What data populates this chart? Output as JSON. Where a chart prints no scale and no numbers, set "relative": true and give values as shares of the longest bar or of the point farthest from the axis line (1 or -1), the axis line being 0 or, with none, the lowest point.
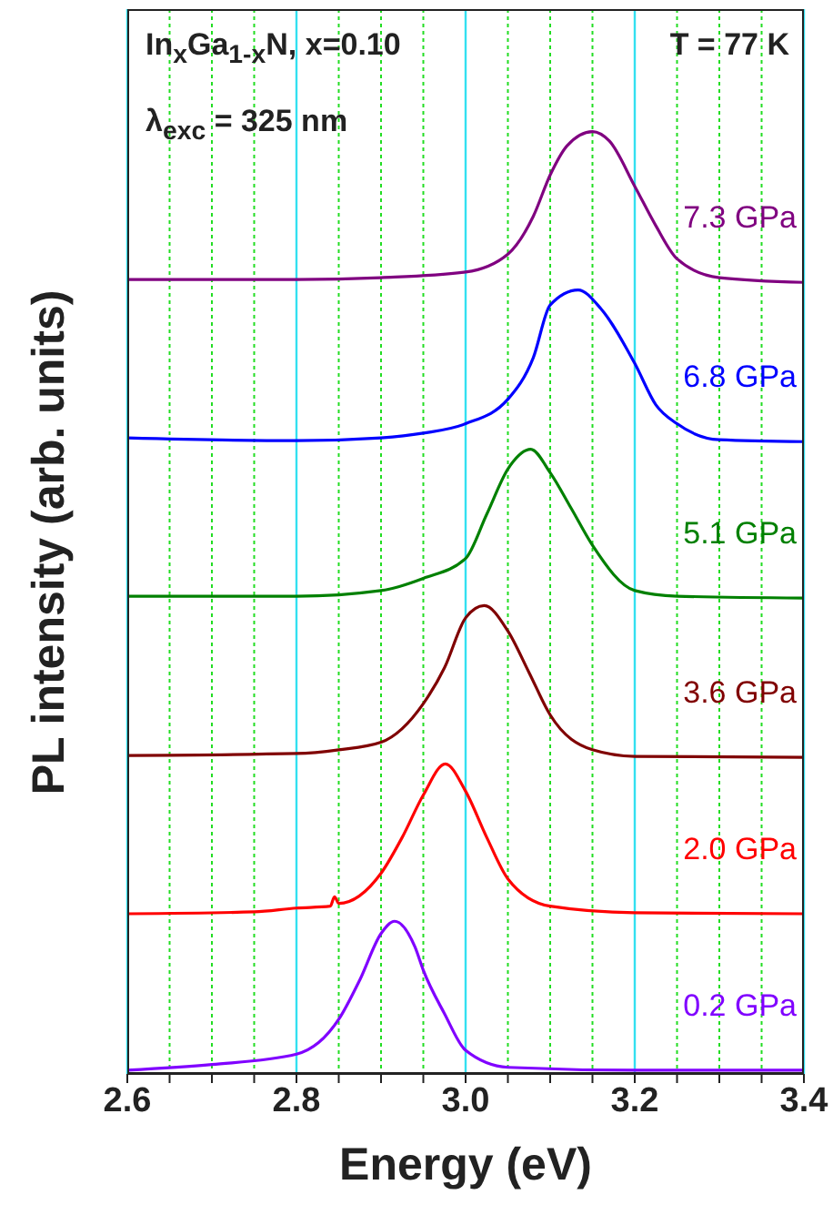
{
  "chart_data": {
    "type": "line",
    "xlabel": "Energy (eV)",
    "ylabel": "PL intensity (arb. units)",
    "relative": true,
    "annotations": [
      "In$_{x}$Ga$_{1-x}$N, x=0.10",
      "λ$_{exc}$ = 325 nm",
      "T = 77 K"
    ],
    "xlim": [
      2.6,
      3.4
    ],
    "xticks": [
      {
        "value": 2.6,
        "label": "2.6"
      },
      {
        "value": 2.65,
        "label": null
      },
      {
        "value": 2.7,
        "label": null
      },
      {
        "value": 2.75,
        "label": null
      },
      {
        "value": 2.8,
        "label": "2.8"
      },
      {
        "value": 2.85,
        "label": null
      },
      {
        "value": 2.9,
        "label": null
      },
      {
        "value": 2.95,
        "label": null
      },
      {
        "value": 3.0,
        "label": "3.0"
      },
      {
        "value": 3.05,
        "label": null
      },
      {
        "value": 3.1,
        "label": null
      },
      {
        "value": 3.15,
        "label": null
      },
      {
        "value": 3.2,
        "label": "3.2"
      },
      {
        "value": 3.25,
        "label": null
      },
      {
        "value": 3.3,
        "label": null
      },
      {
        "value": 3.35,
        "label": null
      },
      {
        "value": 3.4,
        "label": "3.4"
      }
    ],
    "grid": "x",
    "marker": "none",
    "line_style": "solid",
    "series": [
      {
        "name": "0.2 GPa",
        "color": "#8000ff",
        "x": [
          2.6,
          2.7,
          2.8,
          2.85,
          2.875,
          2.9,
          2.916,
          2.94,
          2.95,
          2.975,
          3.0,
          3.05,
          3.2,
          3.4
        ],
        "values": [
          0.004,
          0.01,
          0.021,
          0.058,
          0.1,
          0.149,
          0.162,
          0.135,
          0.11,
          0.064,
          0.025,
          0.007,
          0.004,
          0.004
        ]
      },
      {
        "name": "2.0 GPa",
        "color": "#ff0000",
        "x": [
          2.6,
          2.75,
          2.8,
          2.84,
          2.845,
          2.85,
          2.9,
          2.925,
          2.95,
          2.976,
          3.0,
          3.025,
          3.05,
          3.1,
          3.2,
          3.4
        ],
        "values": [
          0.17,
          0.172,
          0.176,
          0.178,
          0.188,
          0.181,
          0.213,
          0.251,
          0.296,
          0.329,
          0.3,
          0.251,
          0.207,
          0.178,
          0.171,
          0.17
        ]
      },
      {
        "name": "3.6 GPa",
        "color": "#800000",
        "x": [
          2.6,
          2.8,
          2.85,
          2.9,
          2.95,
          2.975,
          3.0,
          3.022,
          3.05,
          3.075,
          3.1,
          3.15,
          3.2,
          3.4
        ],
        "values": [
          0.338,
          0.34,
          0.344,
          0.352,
          0.393,
          0.431,
          0.484,
          0.497,
          0.47,
          0.426,
          0.381,
          0.344,
          0.337,
          0.336
        ]
      },
      {
        "name": "5.1 GPa",
        "color": "#008000",
        "x": [
          2.6,
          2.8,
          2.9,
          2.95,
          3.0,
          3.025,
          3.05,
          3.077,
          3.1,
          3.125,
          3.15,
          3.2,
          3.25,
          3.4
        ],
        "values": [
          0.507,
          0.507,
          0.513,
          0.526,
          0.547,
          0.594,
          0.642,
          0.663,
          0.638,
          0.6,
          0.561,
          0.513,
          0.507,
          0.505
        ]
      },
      {
        "name": "6.8 GPa",
        "color": "#0000ff",
        "x": [
          2.6,
          2.8,
          2.9,
          2.95,
          3.0,
          3.05,
          3.08,
          3.1,
          3.133,
          3.16,
          3.2,
          3.225,
          3.25,
          3.3,
          3.4
        ],
        "values": [
          0.675,
          0.672,
          0.675,
          0.68,
          0.69,
          0.716,
          0.76,
          0.816,
          0.832,
          0.812,
          0.754,
          0.71,
          0.69,
          0.673,
          0.671
        ]
      },
      {
        "name": "7.3 GPa",
        "color": "#800080",
        "x": [
          2.6,
          2.8,
          2.9,
          3.0,
          3.05,
          3.08,
          3.1,
          3.12,
          3.15,
          3.17,
          3.2,
          3.225,
          3.25,
          3.3,
          3.4
        ],
        "values": [
          0.843,
          0.843,
          0.845,
          0.851,
          0.87,
          0.91,
          0.954,
          0.985,
          1.0,
          0.99,
          0.942,
          0.9,
          0.865,
          0.845,
          0.84
        ]
      }
    ]
  }
}
